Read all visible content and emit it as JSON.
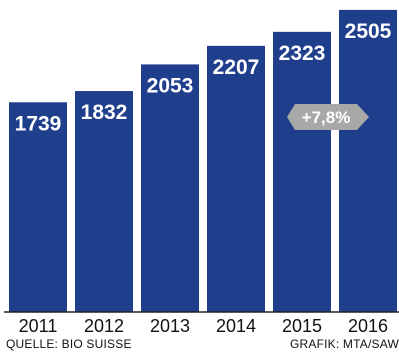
{
  "chart_data": {
    "type": "bar",
    "categories": [
      "2011",
      "2012",
      "2013",
      "2014",
      "2015",
      "2016"
    ],
    "values": [
      1739,
      1832,
      2053,
      2207,
      2323,
      2505
    ],
    "value_labels": [
      "1739",
      "1832",
      "2053",
      "2207",
      "2323",
      "2505"
    ],
    "title": "",
    "xlabel": "",
    "ylabel": "",
    "annotation": "+7,8%",
    "colors": {
      "bar": "#1f3e8c",
      "badge": "#a8a8a8"
    }
  },
  "footer": {
    "source": "QUELLE: BIO SUISSE",
    "credit": "GRAFIK: MTA/SAW"
  }
}
